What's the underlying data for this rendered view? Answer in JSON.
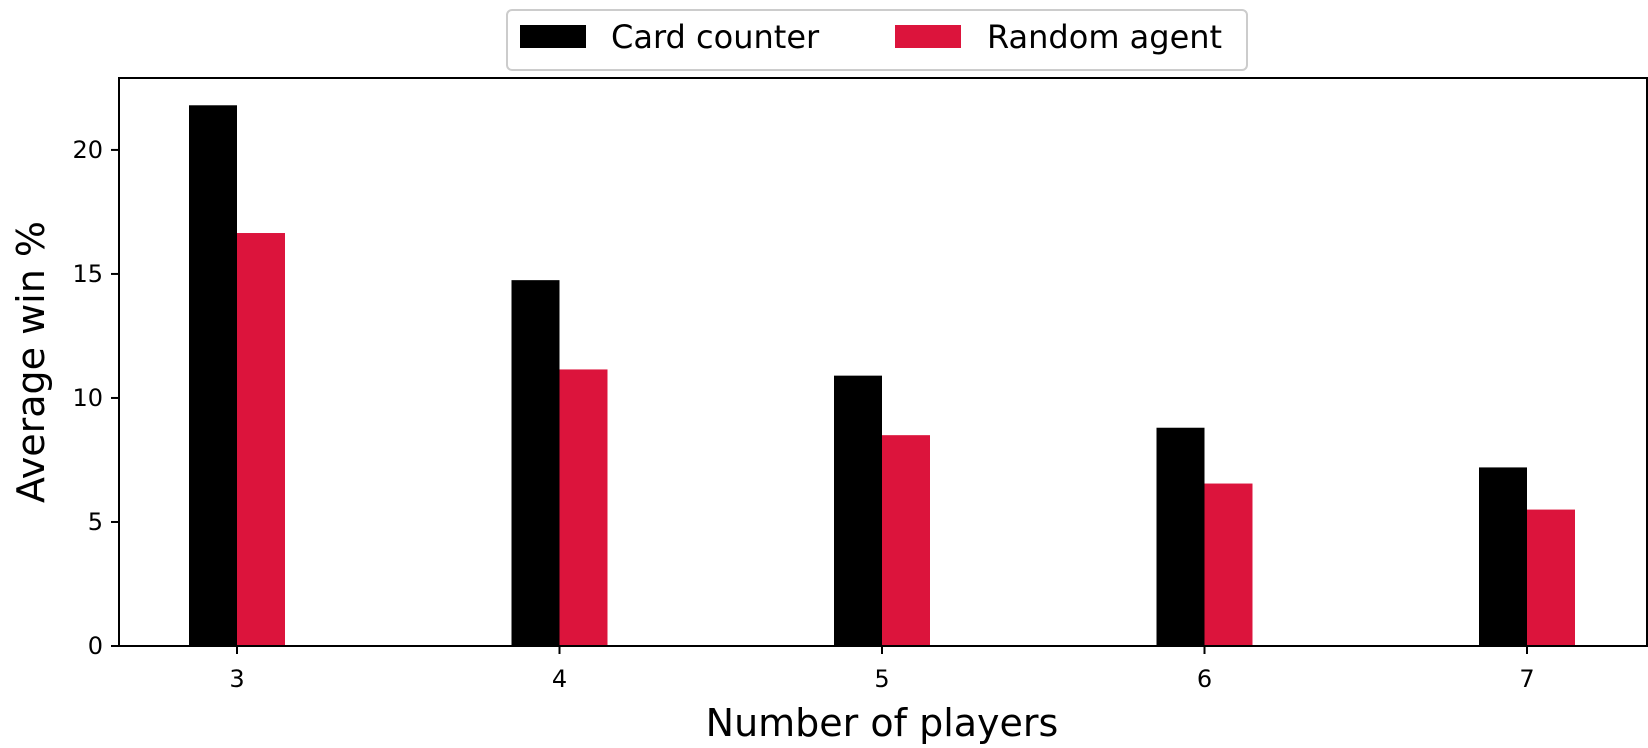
{
  "chart_data": {
    "type": "bar",
    "title": "",
    "xlabel": "Number of players",
    "ylabel": "Average win %",
    "categories": [
      "3",
      "4",
      "5",
      "6",
      "7"
    ],
    "series": [
      {
        "name": "Card counter",
        "color": "#000000",
        "values": [
          21.8,
          14.75,
          10.9,
          8.8,
          7.2
        ]
      },
      {
        "name": "Random agent",
        "color": "#dc143c",
        "values": [
          16.65,
          11.15,
          8.5,
          6.55,
          5.5
        ]
      }
    ],
    "ylim": [
      0,
      22.9
    ],
    "yticks": [
      0,
      5,
      10,
      15,
      20
    ],
    "grid": false,
    "legend": "top-center, above plot"
  }
}
